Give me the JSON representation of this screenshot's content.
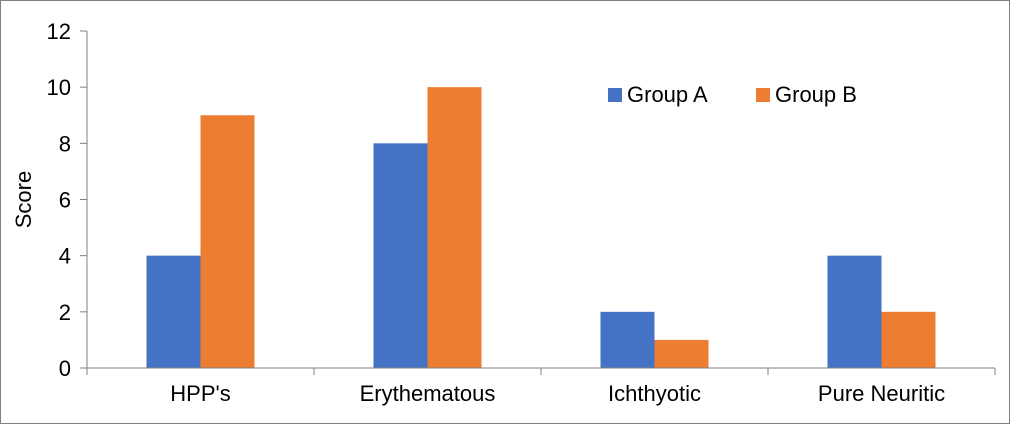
{
  "chart_data": {
    "type": "bar",
    "title": "",
    "xlabel": "",
    "ylabel": "Score",
    "categories": [
      "HPP's",
      "Erythematous",
      "Ichthyotic",
      "Pure Neuritic"
    ],
    "series": [
      {
        "name": "Group A",
        "values": [
          4,
          8,
          2,
          4
        ],
        "color": "#4472C4"
      },
      {
        "name": "Group B",
        "values": [
          9,
          10,
          1,
          2
        ],
        "color": "#ED7D31"
      }
    ],
    "ylim": [
      0,
      12
    ],
    "yticks": [
      0,
      2,
      4,
      6,
      8,
      10,
      12
    ],
    "grid": false,
    "legend_position": "top-right"
  }
}
